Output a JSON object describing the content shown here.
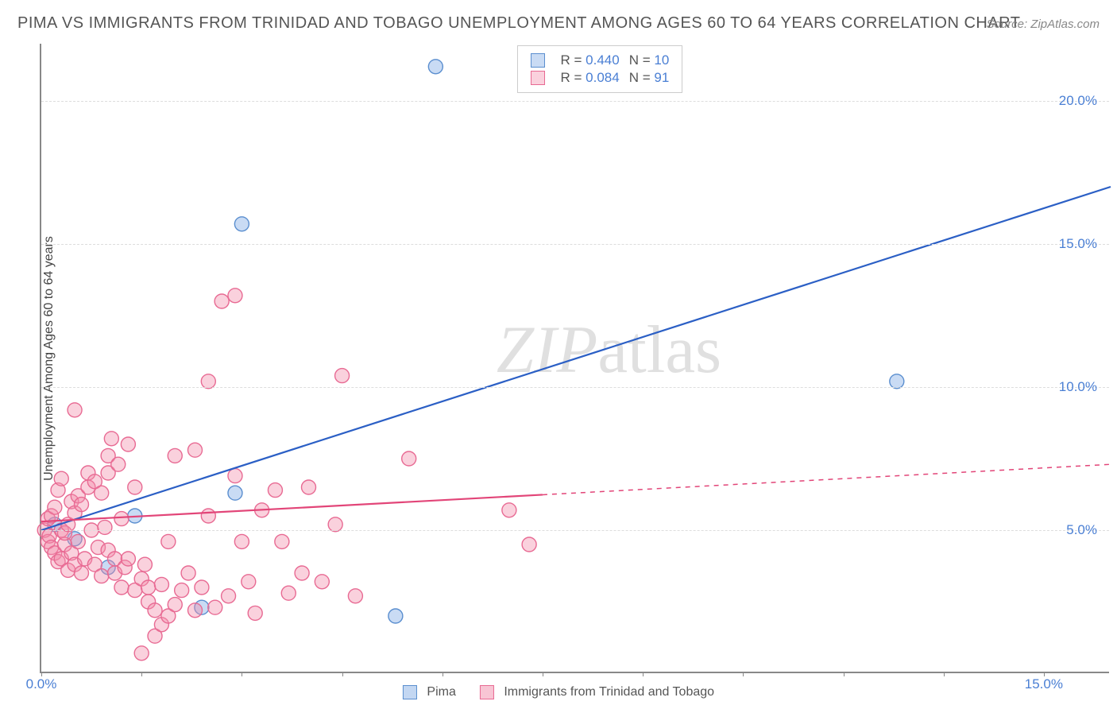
{
  "title": "PIMA VS IMMIGRANTS FROM TRINIDAD AND TOBAGO UNEMPLOYMENT AMONG AGES 60 TO 64 YEARS CORRELATION CHART",
  "source": "Source: ZipAtlas.com",
  "watermark": "ZIPatlas",
  "chart": {
    "type": "scatter",
    "y_axis_title": "Unemployment Among Ages 60 to 64 years",
    "background_color": "#ffffff",
    "grid_color": "#dddddd",
    "axis_color": "#888888",
    "tick_label_color": "#4a7fd4",
    "xlim": [
      0,
      16
    ],
    "ylim": [
      0,
      22
    ],
    "x_ticks": [
      {
        "pos": 0,
        "label": "0.0%"
      },
      {
        "pos": 15,
        "label": "15.0%"
      }
    ],
    "x_minor_ticks": [
      1.5,
      3.0,
      4.5,
      6.0,
      7.5,
      9.0,
      10.5,
      12.0,
      13.5
    ],
    "y_ticks": [
      {
        "pos": 5,
        "label": "5.0%"
      },
      {
        "pos": 10,
        "label": "10.0%"
      },
      {
        "pos": 15,
        "label": "15.0%"
      },
      {
        "pos": 20,
        "label": "20.0%"
      }
    ],
    "y_gridlines": [
      5,
      10,
      15,
      20
    ]
  },
  "series": [
    {
      "name": "Pima",
      "marker_color_fill": "rgba(135,175,230,0.45)",
      "marker_color_stroke": "#5a8ecf",
      "marker_radius": 9,
      "r_value": "0.440",
      "n_value": "10",
      "points": [
        [
          0.2,
          5.2
        ],
        [
          0.5,
          4.7
        ],
        [
          1.0,
          3.7
        ],
        [
          1.4,
          5.5
        ],
        [
          2.4,
          2.3
        ],
        [
          2.9,
          6.3
        ],
        [
          3.0,
          15.7
        ],
        [
          5.3,
          2.0
        ],
        [
          5.9,
          21.2
        ],
        [
          12.8,
          10.2
        ]
      ],
      "trend_line": {
        "color": "#2b5fc5",
        "stroke_width": 2.2,
        "x1": 0,
        "y1": 5.0,
        "x2": 16.0,
        "y2": 17.0,
        "dashed_after_x": null
      }
    },
    {
      "name": "Immigrants from Trinidad and Tobago",
      "marker_color_fill": "rgba(242,140,170,0.40)",
      "marker_color_stroke": "#e86a93",
      "marker_radius": 9,
      "r_value": "0.084",
      "n_value": "91",
      "points": [
        [
          0.05,
          5.0
        ],
        [
          0.1,
          4.6
        ],
        [
          0.1,
          5.4
        ],
        [
          0.12,
          4.8
        ],
        [
          0.15,
          5.5
        ],
        [
          0.15,
          4.4
        ],
        [
          0.2,
          5.8
        ],
        [
          0.2,
          4.2
        ],
        [
          0.25,
          6.4
        ],
        [
          0.25,
          3.9
        ],
        [
          0.3,
          6.8
        ],
        [
          0.3,
          4.0
        ],
        [
          0.3,
          5.0
        ],
        [
          0.35,
          4.5
        ],
        [
          0.35,
          4.9
        ],
        [
          0.4,
          5.2
        ],
        [
          0.4,
          3.6
        ],
        [
          0.45,
          6.0
        ],
        [
          0.45,
          4.2
        ],
        [
          0.5,
          5.6
        ],
        [
          0.5,
          3.8
        ],
        [
          0.5,
          9.2
        ],
        [
          0.55,
          4.6
        ],
        [
          0.55,
          6.2
        ],
        [
          0.6,
          3.5
        ],
        [
          0.6,
          5.9
        ],
        [
          0.65,
          4.0
        ],
        [
          0.7,
          6.5
        ],
        [
          0.7,
          7.0
        ],
        [
          0.75,
          5.0
        ],
        [
          0.8,
          3.8
        ],
        [
          0.8,
          6.7
        ],
        [
          0.85,
          4.4
        ],
        [
          0.9,
          6.3
        ],
        [
          0.9,
          3.4
        ],
        [
          0.95,
          5.1
        ],
        [
          1.0,
          7.0
        ],
        [
          1.0,
          4.3
        ],
        [
          1.0,
          7.6
        ],
        [
          1.05,
          8.2
        ],
        [
          1.1,
          4.0
        ],
        [
          1.1,
          3.5
        ],
        [
          1.15,
          7.3
        ],
        [
          1.2,
          3.0
        ],
        [
          1.2,
          5.4
        ],
        [
          1.25,
          3.7
        ],
        [
          1.3,
          8.0
        ],
        [
          1.3,
          4.0
        ],
        [
          1.4,
          6.5
        ],
        [
          1.4,
          2.9
        ],
        [
          1.5,
          3.3
        ],
        [
          1.5,
          0.7
        ],
        [
          1.55,
          3.8
        ],
        [
          1.6,
          2.5
        ],
        [
          1.6,
          3.0
        ],
        [
          1.7,
          1.3
        ],
        [
          1.7,
          2.2
        ],
        [
          1.8,
          3.1
        ],
        [
          1.8,
          1.7
        ],
        [
          1.9,
          2.0
        ],
        [
          1.9,
          4.6
        ],
        [
          2.0,
          2.4
        ],
        [
          2.0,
          7.6
        ],
        [
          2.1,
          2.9
        ],
        [
          2.2,
          3.5
        ],
        [
          2.3,
          2.2
        ],
        [
          2.3,
          7.8
        ],
        [
          2.4,
          3.0
        ],
        [
          2.5,
          5.5
        ],
        [
          2.5,
          10.2
        ],
        [
          2.6,
          2.3
        ],
        [
          2.7,
          13.0
        ],
        [
          2.8,
          2.7
        ],
        [
          2.9,
          6.9
        ],
        [
          2.9,
          13.2
        ],
        [
          3.0,
          4.6
        ],
        [
          3.1,
          3.2
        ],
        [
          3.2,
          2.1
        ],
        [
          3.3,
          5.7
        ],
        [
          3.5,
          6.4
        ],
        [
          3.6,
          4.6
        ],
        [
          3.7,
          2.8
        ],
        [
          3.9,
          3.5
        ],
        [
          4.0,
          6.5
        ],
        [
          4.2,
          3.2
        ],
        [
          4.4,
          5.2
        ],
        [
          4.5,
          10.4
        ],
        [
          4.7,
          2.7
        ],
        [
          5.5,
          7.5
        ],
        [
          7.0,
          5.7
        ],
        [
          7.3,
          4.5
        ]
      ],
      "trend_line": {
        "color": "#e24578",
        "stroke_width": 2.2,
        "x1": 0,
        "y1": 5.3,
        "x2": 16.0,
        "y2": 7.3,
        "dashed_after_x": 7.5
      }
    }
  ],
  "legend": {
    "top_legend_label_r": "R =",
    "top_legend_label_n": "N =",
    "bottom_items": [
      "Pima",
      "Immigrants from Trinidad and Tobago"
    ]
  }
}
